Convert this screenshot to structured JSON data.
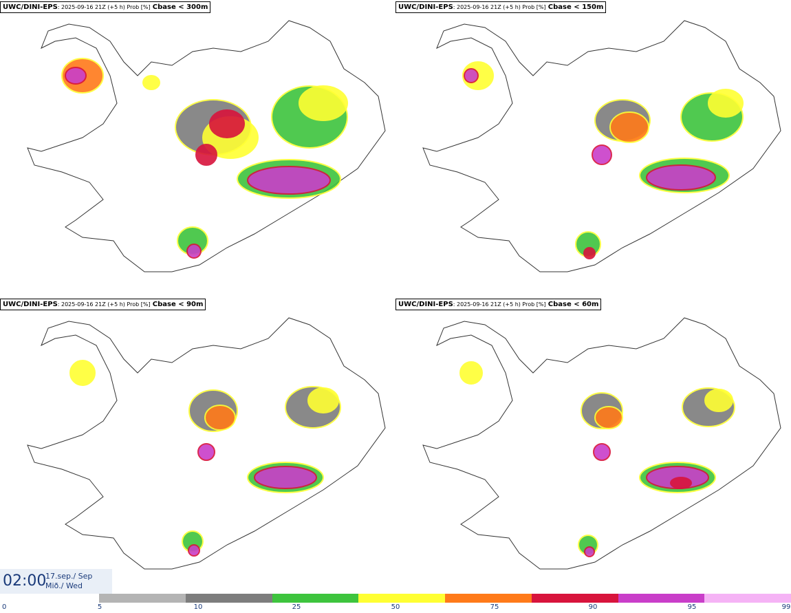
{
  "panels": [
    {
      "model": "UWC/DINI-EPS",
      "meta": ": 2025-09-16 21Z (+5 h) Prob [%]",
      "cbase": "Cbase < 300m"
    },
    {
      "model": "UWC/DINI-EPS",
      "meta": ": 2025-09-16 21Z (+5 h) Prob [%]",
      "cbase": "Cbase < 150m"
    },
    {
      "model": "UWC/DINI-EPS",
      "meta": ": 2025-09-16 21Z (+5 h) Prob [%]",
      "cbase": "Cbase < 90m"
    },
    {
      "model": "UWC/DINI-EPS",
      "meta": ": 2025-09-16 21Z (+5 h) Prob [%]",
      "cbase": "Cbase < 60m"
    }
  ],
  "time": {
    "hour": "02:00",
    "date_line": "17.sep./ Sep",
    "day_line": "Mið./ Wed"
  },
  "colorbar": {
    "ticks": [
      "0",
      "5",
      "10",
      "25",
      "50",
      "75",
      "90",
      "95",
      "99"
    ],
    "colors": [
      "#b4b4b4",
      "#7d7d7d",
      "#3ec43e",
      "#ffff33",
      "#ff7a1a",
      "#d8143c",
      "#c93ec9",
      "#f5b3f5"
    ]
  }
}
